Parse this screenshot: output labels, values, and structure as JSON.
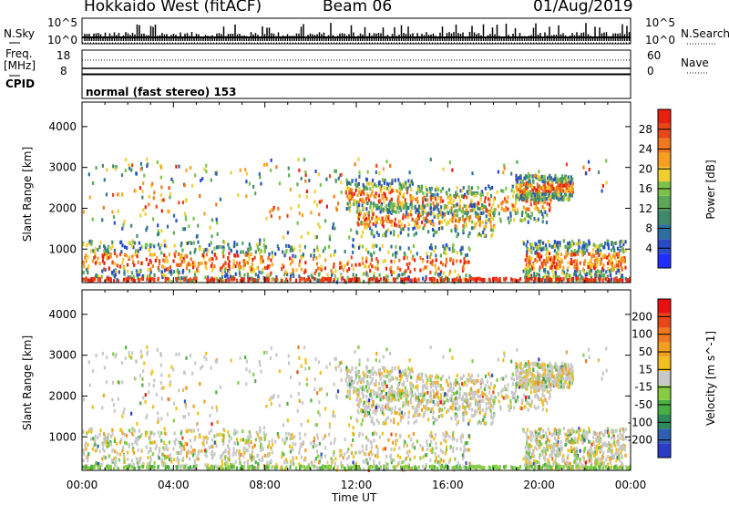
{
  "header": {
    "station": "Hokkaido West (fitACF)",
    "beam": "Beam 06",
    "date": "01/Aug/2019"
  },
  "nsky_panel": {
    "left_label": "N.Sky",
    "right_label": "N.Search",
    "left_ticks": [
      "10^5",
      "10^0"
    ],
    "right_ticks": [
      "10^5",
      "10^0"
    ]
  },
  "freq_panel": {
    "left_label": "Freq.",
    "left_unit": "[MHz]",
    "left_ticks": [
      "18",
      "8"
    ],
    "right_label": "Nave",
    "right_ticks": [
      "60",
      "0"
    ]
  },
  "cpid_panel": {
    "label": "CPID",
    "text": "normal (fast stereo) 153"
  },
  "chart_data": [
    {
      "type": "heatmap",
      "name": "power",
      "ylabel": "Slant Range [km]",
      "y_ticks": [
        1000,
        2000,
        3000,
        4000
      ],
      "ylim": [
        180,
        4600
      ],
      "xlim": [
        0,
        24
      ],
      "colorbar": {
        "label": "Power [dB]",
        "ticks": [
          4,
          8,
          12,
          16,
          20,
          24,
          28
        ],
        "colors": [
          "#1f2fff",
          "#2a4bc8",
          "#2f6fa0",
          "#3f8a6a",
          "#5aa858",
          "#7cc24a",
          "#f0d030",
          "#f5a020",
          "#f07820",
          "#e84818",
          "#e82010"
        ]
      }
    },
    {
      "type": "heatmap",
      "name": "velocity",
      "ylabel": "Slant Range [km]",
      "y_ticks": [
        1000,
        2000,
        3000,
        4000
      ],
      "ylim": [
        180,
        4600
      ],
      "xlim": [
        0,
        24
      ],
      "colorbar": {
        "label": "Velocity [m s^-1]",
        "ticks": [
          "200",
          "100",
          "50",
          "15",
          "-15",
          "-50",
          "-100",
          "-200"
        ],
        "colors": [
          "#2a3cc8",
          "#2f5fb0",
          "#2f8a5a",
          "#4bb044",
          "#88cc44",
          "#c8c8c8",
          "#f0c020",
          "#f0a020",
          "#f07820",
          "#e84818",
          "#e81010"
        ]
      }
    }
  ],
  "x_axis": {
    "ticks": [
      "00:00",
      "04:00",
      "08:00",
      "12:00",
      "16:00",
      "20:00",
      "00:00"
    ],
    "label": "Time UT"
  }
}
